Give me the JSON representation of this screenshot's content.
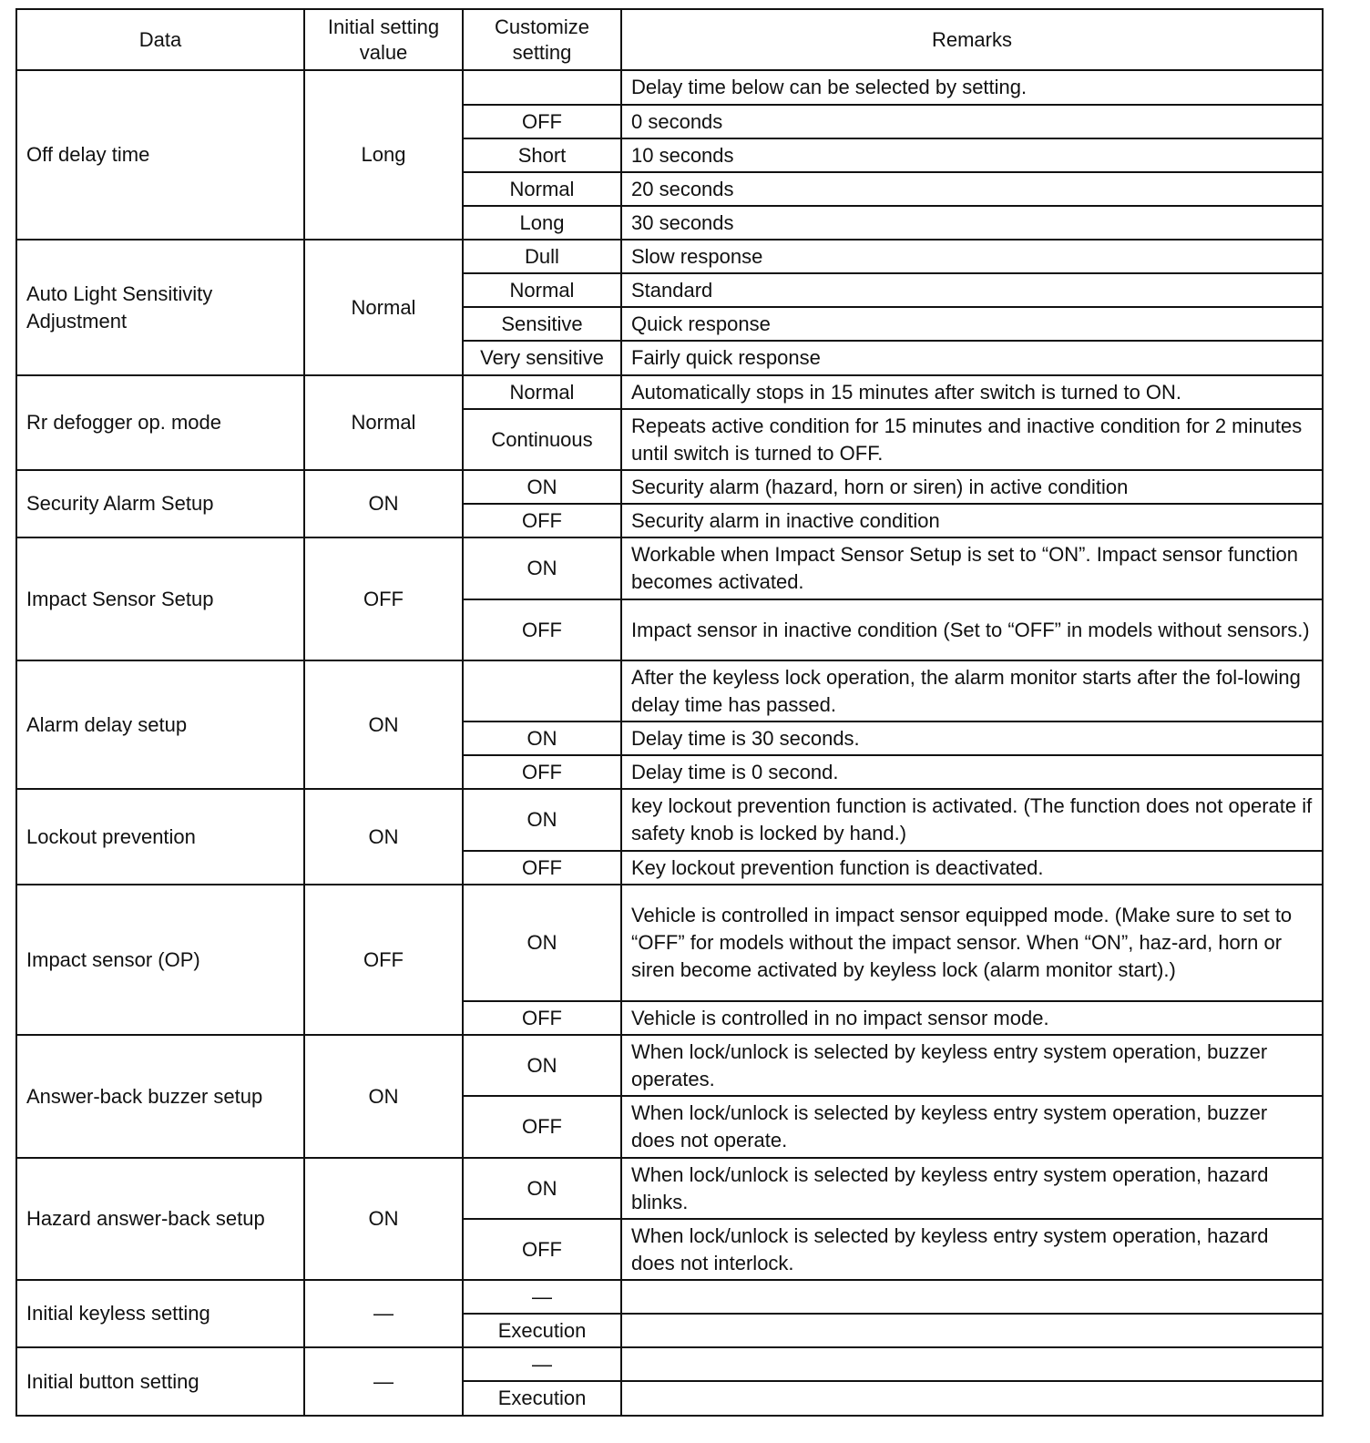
{
  "header": {
    "data": "Data",
    "initial": "Initial setting value",
    "customize": "Customize setting",
    "remarks": "Remarks"
  },
  "rows": [
    {
      "data": "Off delay time",
      "initial": "Long",
      "options": [
        {
          "setting": "",
          "remark": "Delay time below can be selected by setting."
        },
        {
          "setting": "OFF",
          "remark": "0 seconds"
        },
        {
          "setting": "Short",
          "remark": "10 seconds"
        },
        {
          "setting": "Normal",
          "remark": "20 seconds"
        },
        {
          "setting": "Long",
          "remark": "30 seconds"
        }
      ]
    },
    {
      "data": "Auto Light Sensitivity Adjustment",
      "initial": "Normal",
      "options": [
        {
          "setting": "Dull",
          "remark": "Slow response"
        },
        {
          "setting": "Normal",
          "remark": "Standard"
        },
        {
          "setting": "Sensitive",
          "remark": "Quick response"
        },
        {
          "setting": "Very sensitive",
          "remark": "Fairly quick response"
        }
      ]
    },
    {
      "data": "Rr defogger op. mode",
      "initial": "Normal",
      "options": [
        {
          "setting": "Normal",
          "remark": "Automatically stops in 15 minutes after switch is turned to ON."
        },
        {
          "setting": "Continuous",
          "remark": "Repeats active condition for 15 minutes and inactive condition for 2 minutes until switch is turned to OFF."
        }
      ]
    },
    {
      "data": "Security Alarm Setup",
      "initial": "ON",
      "options": [
        {
          "setting": "ON",
          "remark": "Security alarm (hazard, horn or siren) in active condition"
        },
        {
          "setting": "OFF",
          "remark": "Security alarm in inactive condition"
        }
      ]
    },
    {
      "data": "Impact Sensor Setup",
      "initial": "OFF",
      "options": [
        {
          "setting": "ON",
          "remark": "Workable when Impact Sensor Setup is set to “ON”. Impact sensor function becomes activated."
        },
        {
          "setting": "OFF",
          "remark": "Impact sensor in inactive condition (Set to “OFF” in models without sensors.)"
        }
      ]
    },
    {
      "data": "Alarm delay setup",
      "initial": "ON",
      "options": [
        {
          "setting": "",
          "remark": "After the keyless lock operation, the alarm monitor starts after the fol-lowing delay time has passed."
        },
        {
          "setting": "ON",
          "remark": "Delay time is 30 seconds."
        },
        {
          "setting": "OFF",
          "remark": "Delay time is 0 second."
        }
      ]
    },
    {
      "data": "Lockout prevention",
      "initial": "ON",
      "options": [
        {
          "setting": "ON",
          "remark": "key lockout prevention function is activated. (The function does not operate if safety knob is locked by hand.)"
        },
        {
          "setting": "OFF",
          "remark": "Key lockout prevention function is deactivated."
        }
      ]
    },
    {
      "data": "Impact sensor (OP)",
      "initial": "OFF",
      "options": [
        {
          "setting": "ON",
          "remark": "Vehicle is controlled in impact sensor equipped mode. (Make sure to set to “OFF” for models without the impact sensor. When “ON”, haz-ard, horn or siren become activated by keyless lock (alarm monitor start).)"
        },
        {
          "setting": "OFF",
          "remark": "Vehicle is controlled in no impact sensor mode."
        }
      ]
    },
    {
      "data": "Answer-back buzzer setup",
      "initial": "ON",
      "options": [
        {
          "setting": "ON",
          "remark": "When lock/unlock is selected by keyless entry system operation, buzzer operates."
        },
        {
          "setting": "OFF",
          "remark": "When lock/unlock is selected by keyless entry system operation, buzzer does not operate."
        }
      ]
    },
    {
      "data": "Hazard answer-back setup",
      "initial": "ON",
      "options": [
        {
          "setting": "ON",
          "remark": "When lock/unlock is selected by keyless entry system operation, hazard blinks."
        },
        {
          "setting": "OFF",
          "remark": "When lock/unlock is selected by keyless entry system operation, hazard does not interlock."
        }
      ]
    },
    {
      "data": "Initial keyless setting",
      "initial": "—",
      "options": [
        {
          "setting": "—",
          "remark": ""
        },
        {
          "setting": "Execution",
          "remark": ""
        }
      ]
    },
    {
      "data": "Initial button setting",
      "initial": "—",
      "options": [
        {
          "setting": "—",
          "remark": ""
        },
        {
          "setting": "Execution",
          "remark": ""
        }
      ]
    }
  ]
}
